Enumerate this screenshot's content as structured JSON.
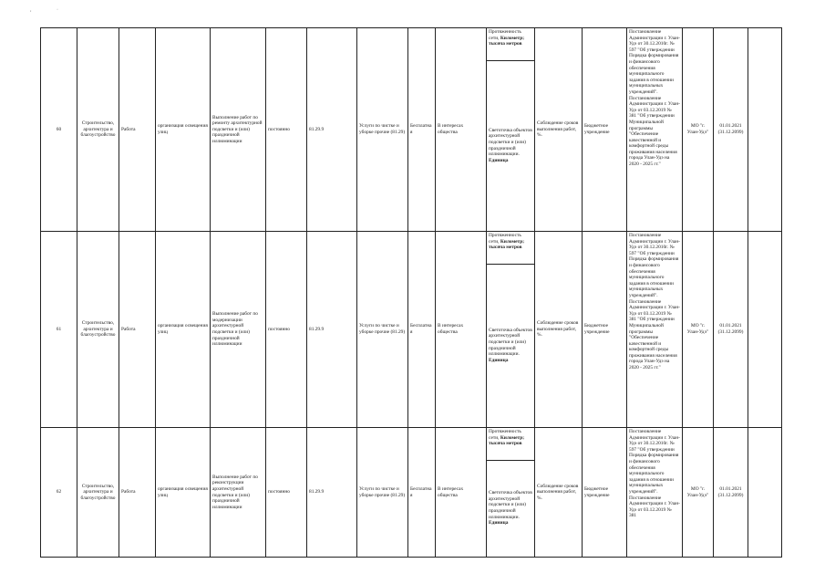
{
  "page_marks": [
    ",",
    "·"
  ],
  "rows": [
    {
      "num": "60",
      "sector": "Строительство, архитектура и благоустройство",
      "type": "Работа",
      "activity": "организация освещения улиц",
      "content": "Выполнение работ по ремонту архитектурной подсветки и (или) праздничной иллюминации",
      "frequency": "постоянно",
      "okved": "81.29.9",
      "okved_name": "Услуги по чистке и уборке прочие (81.29)",
      "payment": "Бесплатная",
      "beneficiary": "В интересах общества",
      "volume_indicator": "Протяженность сети,",
      "volume_unit": "Километр; тысяча метров",
      "quantity_indicator": "Светоточка объектов архитектурной подсветки и (или) праздничной иллюминации.",
      "quantity_unit": "Единица",
      "quality": "Соблюдение сроков выполнения работ, %.",
      "institution": "Бюджетное учреждение",
      "legal": "Постановление Администрации г. Улан-Удэ от 30.12.2010г. № 597 \"Об утверждении Порядка формирования и финансового обеспечения муниципального задания в отношении муниципальных учреждений\". Постановление Администрации г. Улан-Удэ от 03.12.2019 № 381 \"Об утверждении Муниципальной программы \"Обеспечение качественной и комфортной среды проживания населения города Улан-Удэ на 2020 - 2025 гг.\"",
      "owner": "МО \"г. Улан-Удэ\"",
      "dates": "01.01.2021 (31.12.2099)",
      "extra": ""
    },
    {
      "num": "61",
      "sector": "Строительство, архитектура и благоустройство",
      "type": "Работа",
      "activity": "организация освещения улиц",
      "content": "Выполнение работ по модернизации архитектурной подсветки и (или) праздничной иллюминации",
      "frequency": "постоянно",
      "okved": "81.29.9",
      "okved_name": "Услуги по чистке и уборке прочие (81.29)",
      "payment": "Бесплатная",
      "beneficiary": "В интересах общества",
      "volume_indicator": "Протяженность сети,",
      "volume_unit": "Километр; тысяча метров",
      "quantity_indicator": "Светоточка объектов архитектурной подсветки и (или) праздничной иллюминации.",
      "quantity_unit": "Единица",
      "quality": "Соблюдение сроков выполнения работ, %.",
      "institution": "Бюджетное учреждение",
      "legal": "Постановление Администрации г. Улан-Удэ от 30.12.2010г. № 597 \"Об утверждении Порядка формирования и финансового обеспечения муниципального задания в отношении муниципальных учреждений\". Постановление Администрации г. Улан-Удэ от 03.12.2019 № 381 \"Об утверждении Муниципальной программы \"Обеспечение качественной и комфортной среды проживания населения города Улан-Удэ на 2020 - 2025 гг.\"",
      "owner": "МО \"г. Улан-Удэ\"",
      "dates": "01.01.2021 (31.12.2099)",
      "extra": ""
    },
    {
      "num": "62",
      "sector": "Строительство, архитектура и благоустройство",
      "type": "Работа",
      "activity": "организация освещения улиц",
      "content": "Выполнение работ по реконструкции архитектурной подсветки и (или) праздничной иллюминации",
      "frequency": "постоянно",
      "okved": "81.29.9",
      "okved_name": "Услуги по чистке и уборке прочие (81.29)",
      "payment": "Бесплатная",
      "beneficiary": "В интересах общества",
      "volume_indicator": "Протяженность сети,",
      "volume_unit": "Километр; тысяча метров",
      "quantity_indicator": "Светоточка объектов архитектурной подсветки и (или) праздничной иллюминации.",
      "quantity_unit": "Единица",
      "quality": "Соблюдение сроков выполнения работ, %.",
      "institution": "Бюджетное учреждение",
      "legal": "Постановление Администрации г. Улан-Удэ от 30.12.2010г. № 597 \"Об утверждении Порядка формирования и финансового обеспечения муниципального задания в отношении муниципальных учреждений\". Постановление Администрации г. Улан-Удэ от 03.12.2019 № 381",
      "owner": "МО \"г. Улан-Удэ\"",
      "dates": "01.01.2021 (31.12.2099)",
      "extra": ""
    }
  ]
}
